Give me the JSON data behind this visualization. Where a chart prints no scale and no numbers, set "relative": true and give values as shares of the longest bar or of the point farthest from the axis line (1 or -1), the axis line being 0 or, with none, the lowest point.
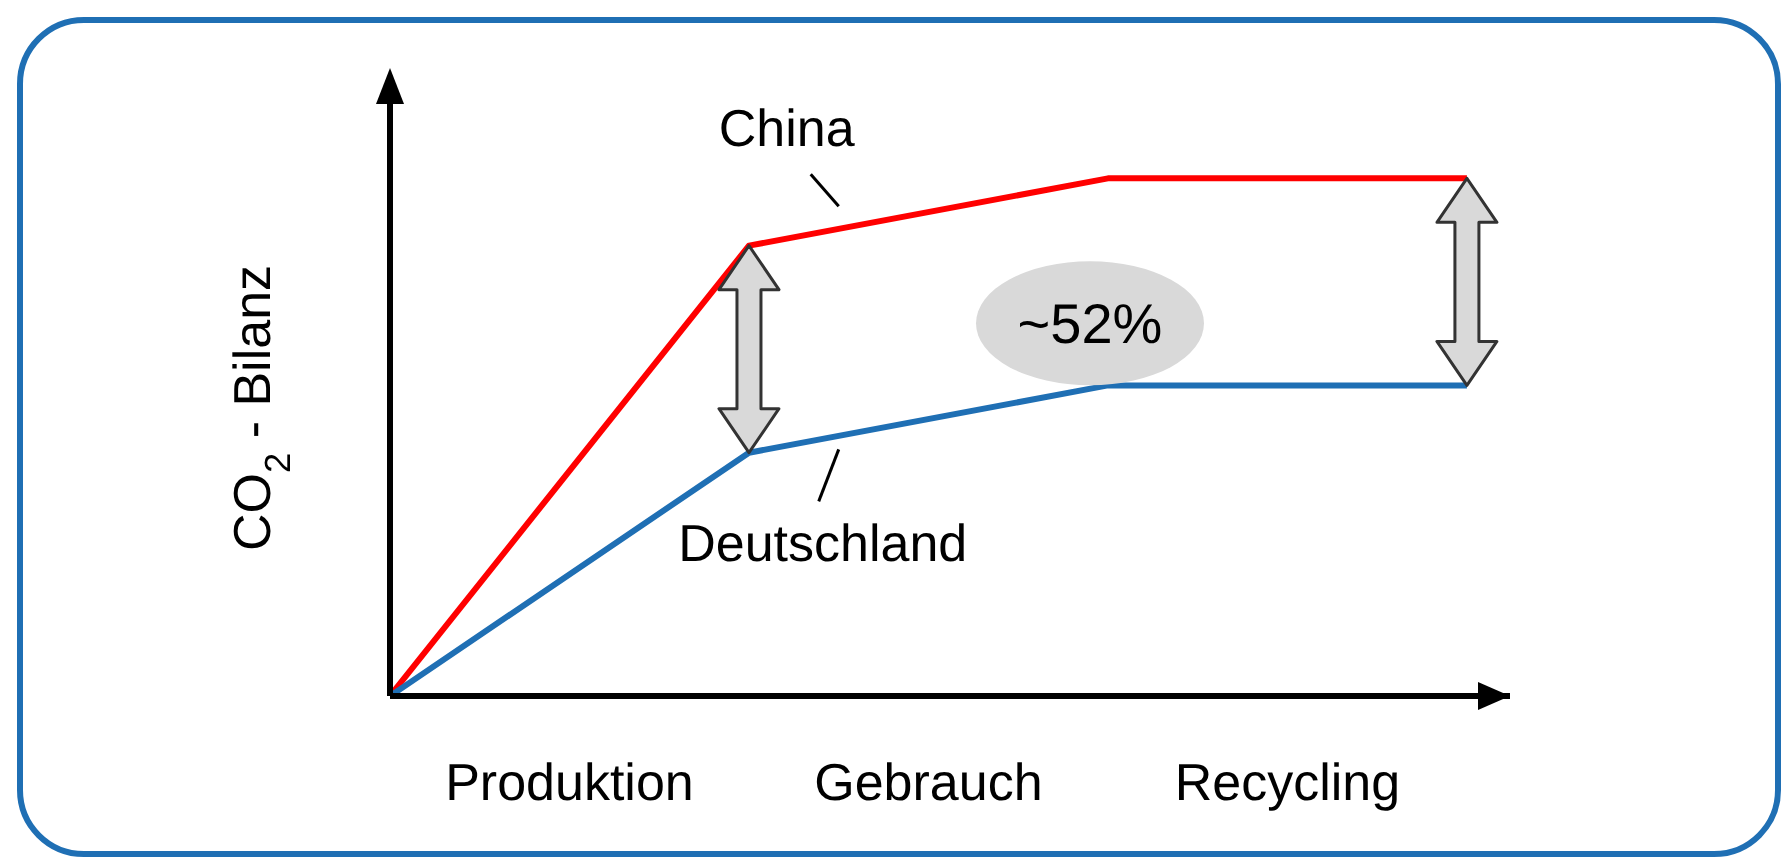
{
  "chart_data": {
    "type": "line",
    "relative": true,
    "ylabel": "CO$_{2}$ - Bilanz",
    "categories": [
      null,
      "Produktion",
      null,
      "Gebrauch",
      null,
      "Recycling",
      null
    ],
    "annotations": [
      "~52%"
    ],
    "legend": false,
    "grid": false,
    "marker": "none",
    "line_style": "solid",
    "series": [
      {
        "name": "China",
        "color": "#ff0000",
        "values": [
          0,
          null,
          0.87,
          null,
          1,
          null,
          1
        ]
      },
      {
        "name": "Deutschland",
        "color": "#1f6fb4",
        "values": [
          0,
          null,
          0.47,
          null,
          0.6,
          null,
          0.6
        ]
      }
    ]
  }
}
